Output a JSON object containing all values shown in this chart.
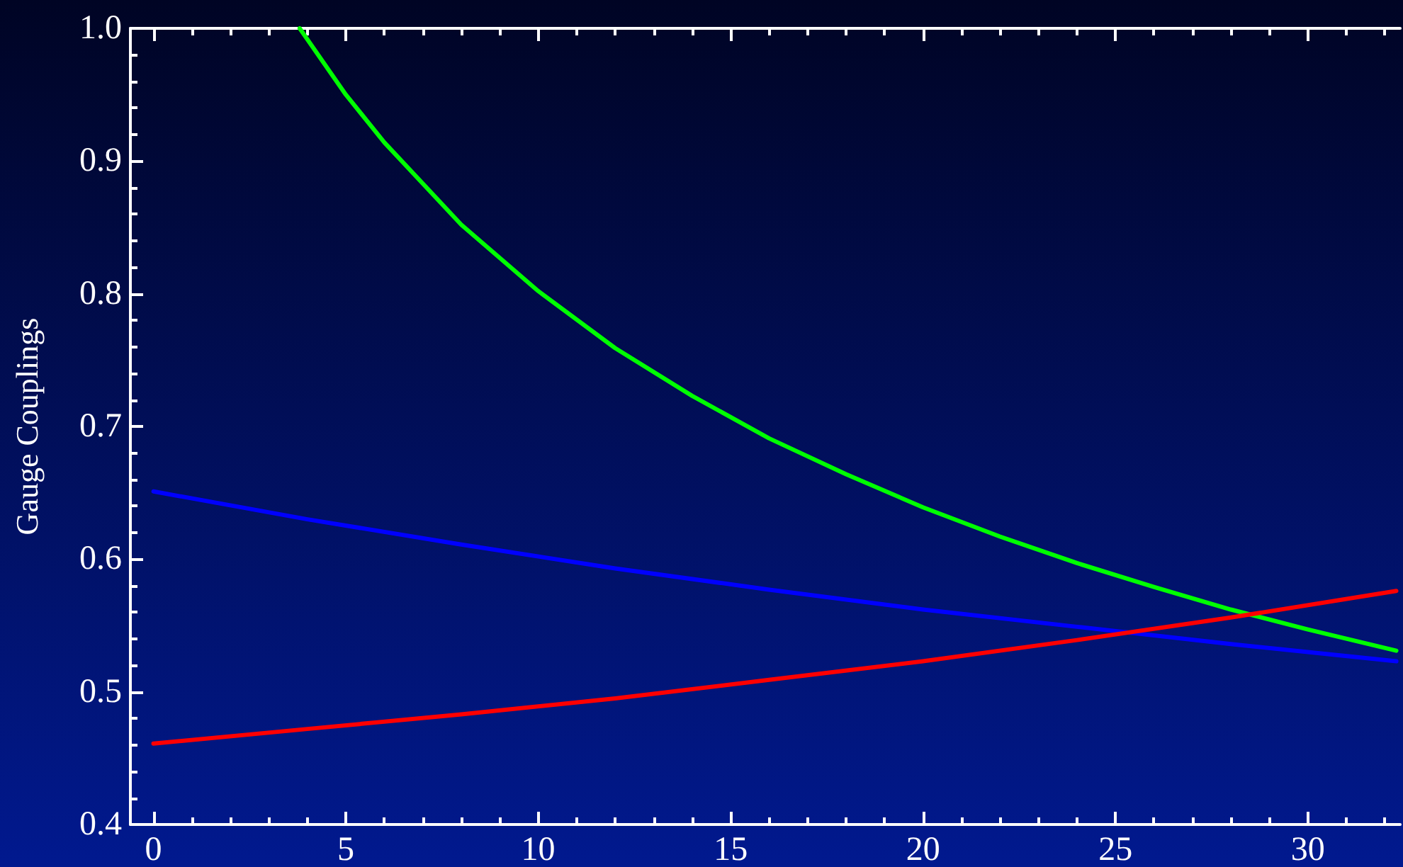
{
  "chart_data": {
    "type": "line",
    "ylabel": "Gauge Couplings",
    "xlim": [
      -0.6,
      32.4
    ],
    "ylim": [
      0.4,
      1.0
    ],
    "xticks": [
      0,
      5,
      10,
      15,
      20,
      25,
      30
    ],
    "yticks": [
      0.4,
      0.5,
      0.6,
      0.7,
      0.8,
      0.9,
      {
        "value": 1.0,
        "label": "1.0"
      }
    ],
    "marker": "none",
    "line_style": "solid",
    "series": [
      {
        "color": "#00ff00",
        "x": [
          3.8,
          5,
          6,
          8,
          10,
          12,
          14,
          16,
          18,
          20,
          22,
          24,
          26,
          28,
          30,
          32.3
        ],
        "values": [
          1.0,
          0.95,
          0.914,
          0.852,
          0.802,
          0.759,
          0.723,
          0.691,
          0.664,
          0.639,
          0.617,
          0.597,
          0.579,
          0.562,
          0.547,
          0.531
        ]
      },
      {
        "color": "#0000ff",
        "x": [
          0,
          4,
          8,
          12,
          16,
          20,
          24,
          28,
          32.3
        ],
        "values": [
          0.651,
          0.63,
          0.611,
          0.593,
          0.577,
          0.562,
          0.549,
          0.536,
          0.523
        ]
      },
      {
        "color": "#ff0000",
        "x": [
          0,
          4,
          8,
          12,
          16,
          20,
          24,
          28,
          32.3
        ],
        "values": [
          0.461,
          0.472,
          0.483,
          0.495,
          0.509,
          0.523,
          0.539,
          0.556,
          0.576
        ]
      }
    ]
  }
}
